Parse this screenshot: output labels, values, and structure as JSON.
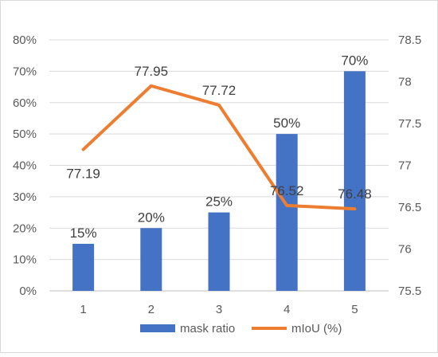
{
  "chart_data": {
    "type": "bar+line",
    "categories": [
      "1",
      "2",
      "3",
      "4",
      "5"
    ],
    "series": [
      {
        "name": "mask ratio",
        "type": "bar",
        "axis": "left",
        "values": [
          15,
          20,
          25,
          50,
          70
        ],
        "labels": [
          "15%",
          "20%",
          "25%",
          "50%",
          "70%"
        ],
        "color": "#4472C4"
      },
      {
        "name": "mIoU (%)",
        "type": "line",
        "axis": "right",
        "values": [
          77.19,
          77.95,
          77.72,
          76.52,
          76.48
        ],
        "labels": [
          "77.19",
          "77.95",
          "77.72",
          "76.52",
          "76.48"
        ],
        "color": "#ED7D31"
      }
    ],
    "y_left": {
      "ylim": [
        0,
        80
      ],
      "ticks": [
        "0%",
        "10%",
        "20%",
        "30%",
        "40%",
        "50%",
        "60%",
        "70%",
        "80%"
      ]
    },
    "y_right": {
      "ylim": [
        75.5,
        78.5
      ],
      "ticks": [
        "75.5",
        "76",
        "76.5",
        "77",
        "77.5",
        "78",
        "78.5"
      ]
    },
    "grid": true,
    "legend": "bottom"
  }
}
